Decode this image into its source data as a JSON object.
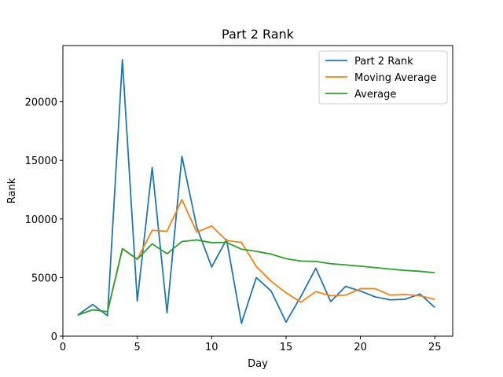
{
  "chart_data": {
    "type": "line",
    "title": "Part 2 Rank",
    "xlabel": "Day",
    "ylabel": "Rank",
    "xlim": [
      0,
      26.2
    ],
    "ylim": [
      0,
      24800
    ],
    "xticks": [
      0,
      5,
      10,
      15,
      20,
      25
    ],
    "yticks": [
      0,
      5000,
      10000,
      15000,
      20000
    ],
    "grid": false,
    "legend_position": "top-right",
    "x": [
      1,
      2,
      3,
      4,
      5,
      6,
      7,
      8,
      9,
      10,
      11,
      12,
      13,
      14,
      15,
      16,
      17,
      18,
      19,
      20,
      21,
      22,
      23,
      24,
      25
    ],
    "series": [
      {
        "name": "Part 2 Rank",
        "color": "#1f77b4",
        "values": [
          1800,
          2700,
          1750,
          23600,
          3000,
          14400,
          2000,
          15350,
          9300,
          5900,
          8250,
          1100,
          5000,
          3850,
          1200,
          3400,
          5800,
          2950,
          4250,
          3850,
          3350,
          3100,
          3150,
          3600,
          2450
        ]
      },
      {
        "name": "Moving Average",
        "color": "#ff7f0e",
        "values": [
          1800,
          2250,
          2083,
          7463,
          6570,
          9030,
          8950,
          11650,
          8880,
          9400,
          8160,
          8000,
          5950,
          4680,
          3700,
          2900,
          3800,
          3450,
          3500,
          4050,
          4050,
          3500,
          3550,
          3450,
          3140
        ]
      },
      {
        "name": "Average",
        "color": "#2ca02c",
        "values": [
          1800,
          2250,
          2083,
          7463,
          6570,
          7875,
          7036,
          8075,
          8210,
          7980,
          8000,
          7425,
          7240,
          7000,
          6610,
          6410,
          6375,
          6185,
          6085,
          5975,
          5850,
          5725,
          5615,
          5535,
          5410
        ]
      }
    ]
  }
}
